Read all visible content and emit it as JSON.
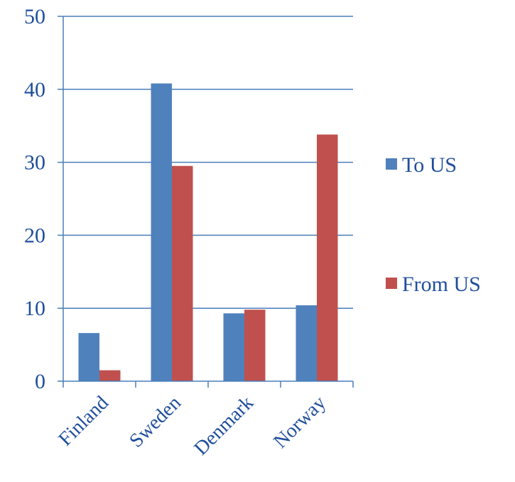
{
  "chart_data": {
    "type": "bar",
    "title": "",
    "xlabel": "",
    "ylabel": "",
    "categories": [
      "Finland",
      "Sweden",
      "Denmark",
      "Norway"
    ],
    "series": [
      {
        "name": "To US",
        "values": [
          6.6,
          40.8,
          9.3,
          10.4
        ],
        "color": "#4f81bd"
      },
      {
        "name": "From US",
        "values": [
          1.5,
          29.5,
          9.8,
          33.8
        ],
        "color": "#c0504d"
      }
    ],
    "ylim": [
      0,
      50
    ],
    "yticks": [
      "0",
      "10",
      "20",
      "30",
      "40",
      "50"
    ],
    "grid": true,
    "legend_position": "right"
  }
}
